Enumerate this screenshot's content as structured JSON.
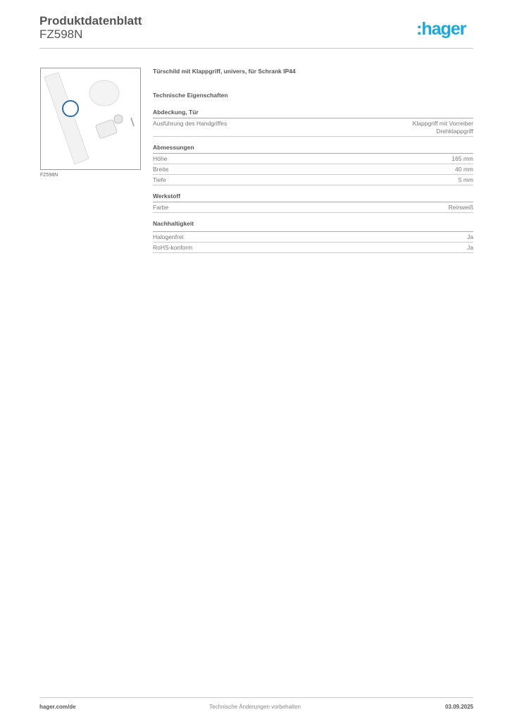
{
  "header": {
    "title": "Produktdatenblatt",
    "article": "FZ598N",
    "logo": ":hager",
    "brand_color": "#19a8e0"
  },
  "image": {
    "caption": "FZ598N"
  },
  "product": {
    "title": "Türschild mit Klappgriff, univers, für Schrank IP44",
    "section_heading": "Technische Eigenschaften"
  },
  "sections": [
    {
      "heading": "Abdeckung, Tür",
      "rows": [
        {
          "label": "Ausführung des Handgriffes",
          "value": "Klappgriff mit Vorreiber",
          "value2": "Drehklappgriff"
        }
      ]
    },
    {
      "heading": "Abmessungen",
      "rows": [
        {
          "label": "Höhe",
          "value": "165 mm"
        },
        {
          "label": "Breite",
          "value": "40 mm"
        },
        {
          "label": "Tiefe",
          "value": "5 mm"
        }
      ]
    },
    {
      "heading": "Werkstoff",
      "rows": [
        {
          "label": "Farbe",
          "value": "Reinweiß"
        }
      ]
    },
    {
      "heading": "Nachhaltigkeit",
      "rows": [
        {
          "label": "Halogenfrei",
          "value": "Ja"
        },
        {
          "label": "RoHS-konform",
          "value": "Ja"
        }
      ]
    }
  ],
  "footer": {
    "website": "hager.com/de",
    "notice": "Technische Änderungen vorbehalten",
    "date": "03.09.2025"
  }
}
